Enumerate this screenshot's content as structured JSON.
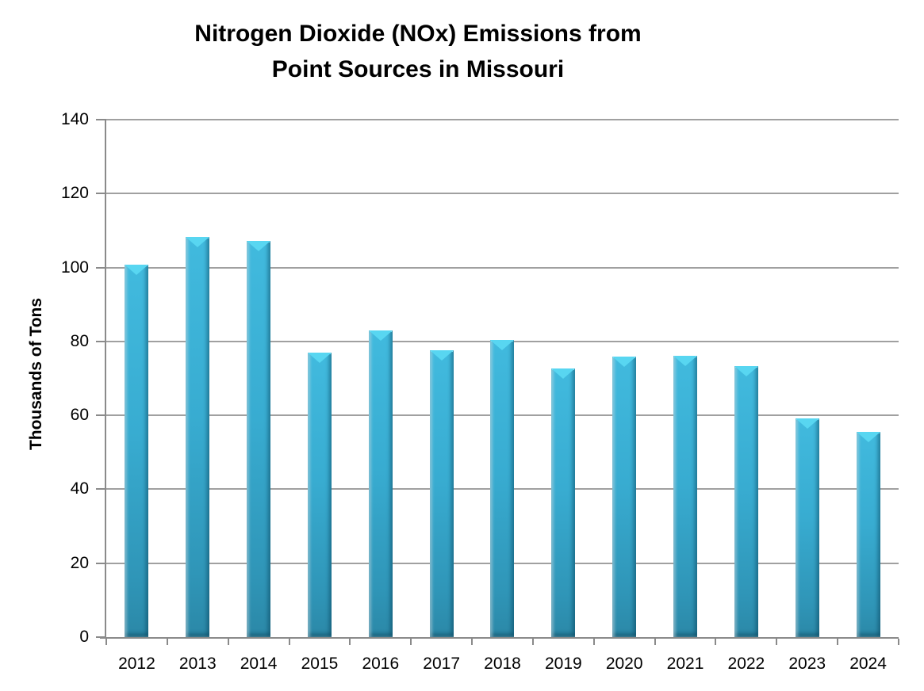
{
  "chart_data": {
    "type": "bar",
    "title": "Nitrogen Dioxide (NOx) Emissions from Point Sources in Missouri",
    "title_lines": [
      "Nitrogen Dioxide (NOx) Emissions from",
      "Point Sources in Missouri"
    ],
    "xlabel": "",
    "ylabel": "Thousands of Tons",
    "categories": [
      "2012",
      "2013",
      "2014",
      "2015",
      "2016",
      "2017",
      "2018",
      "2019",
      "2020",
      "2021",
      "2022",
      "2023",
      "2024"
    ],
    "values": [
      100.7,
      108.3,
      107.2,
      77.0,
      83.0,
      77.6,
      80.3,
      72.7,
      75.8,
      76.2,
      73.3,
      59.2,
      55.5
    ],
    "ylim": [
      0,
      140
    ],
    "yticks": [
      0,
      20,
      40,
      60,
      80,
      100,
      120,
      140
    ],
    "grid": "horizontal gridlines on",
    "legend": "none",
    "colors": {
      "bar_body": "#35a9ce",
      "bar_body_top": "#41bade",
      "bar_body_bottom": "#2b88a7",
      "bar_cap_highlight": "#58d6f1",
      "gridline": "#a0a0a0",
      "axis_line": "#8a8a8a",
      "text": "#000000"
    }
  }
}
